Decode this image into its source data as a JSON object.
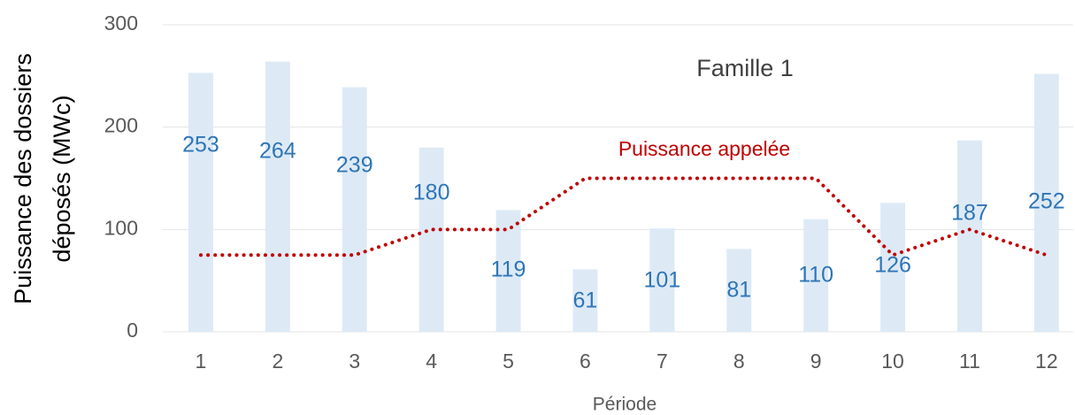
{
  "chart_data": {
    "type": "bar",
    "title": "Famille 1",
    "x_label": "Période",
    "y_label": [
      "Puissance des dossiers",
      "déposés  (MWc)"
    ],
    "categories": [
      "1",
      "2",
      "3",
      "4",
      "5",
      "6",
      "7",
      "8",
      "9",
      "10",
      "11",
      "12"
    ],
    "series": [
      {
        "color": "#ddeaf6",
        "values": [
          253,
          264,
          239,
          180,
          119,
          61,
          101,
          81,
          110,
          126,
          187,
          252
        ]
      },
      {
        "name": "Puissance appelée",
        "type": "line",
        "color": "#c00000",
        "values": [
          75,
          75,
          75,
          100,
          100,
          150,
          150,
          150,
          150,
          75,
          100,
          75
        ]
      }
    ],
    "ylim": [
      0,
      300
    ],
    "yticks": [
      0,
      100,
      200,
      300
    ],
    "grid": true
  }
}
